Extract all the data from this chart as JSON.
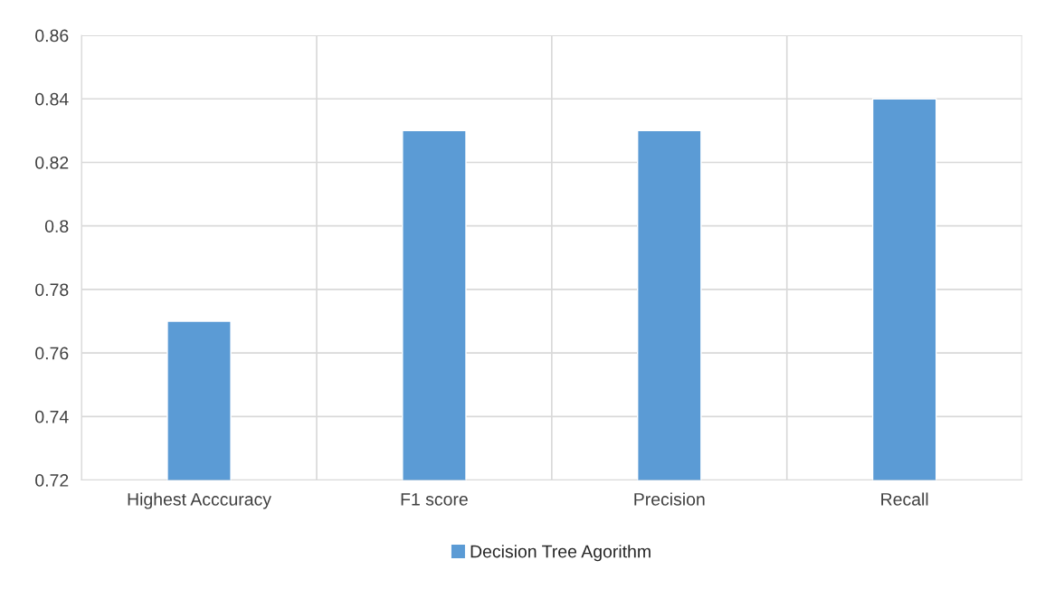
{
  "chart_data": {
    "type": "bar",
    "categories": [
      "Highest Acccuracy",
      "F1 score",
      "Precision",
      "Recall"
    ],
    "series": [
      {
        "name": "Decision Tree Agorithm",
        "color": "#5b9bd5",
        "values": [
          0.77,
          0.83,
          0.83,
          0.84
        ]
      }
    ],
    "ylim": [
      0.72,
      0.86
    ],
    "yticks": [
      0.72,
      0.74,
      0.76,
      0.78,
      0.8,
      0.82,
      0.84,
      0.86
    ],
    "grid": true,
    "legend": "bottom"
  }
}
